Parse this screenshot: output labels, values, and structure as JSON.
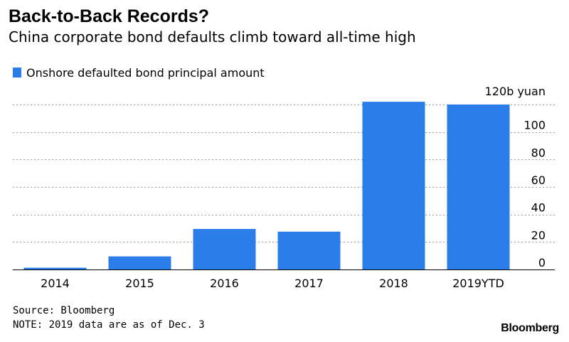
{
  "chart_data": {
    "type": "bar",
    "title": "Back-to-Back Records?",
    "subtitle": "China corporate bond defaults climb toward all-time high",
    "categories": [
      "2014",
      "2015",
      "2016",
      "2017",
      "2018",
      "2019YTD"
    ],
    "series": [
      {
        "name": "Onshore defaulted bond principal amount",
        "values": [
          1.3,
          9.5,
          29.5,
          27.5,
          122,
          120
        ],
        "color": "#2b7de9"
      }
    ],
    "y_axis": {
      "ticks": [
        "0",
        "20",
        "40",
        "60",
        "80",
        "100"
      ],
      "top_label": "120b yuan",
      "unit": "b yuan",
      "position": "right"
    },
    "ylim": [
      0,
      120
    ],
    "grid": true,
    "grid_style": "dotted",
    "legend_position": "top-left"
  },
  "footer": {
    "source": "Source: Bloomberg",
    "note": "NOTE: 2019 data are as of Dec. 3",
    "brand": "Bloomberg"
  }
}
